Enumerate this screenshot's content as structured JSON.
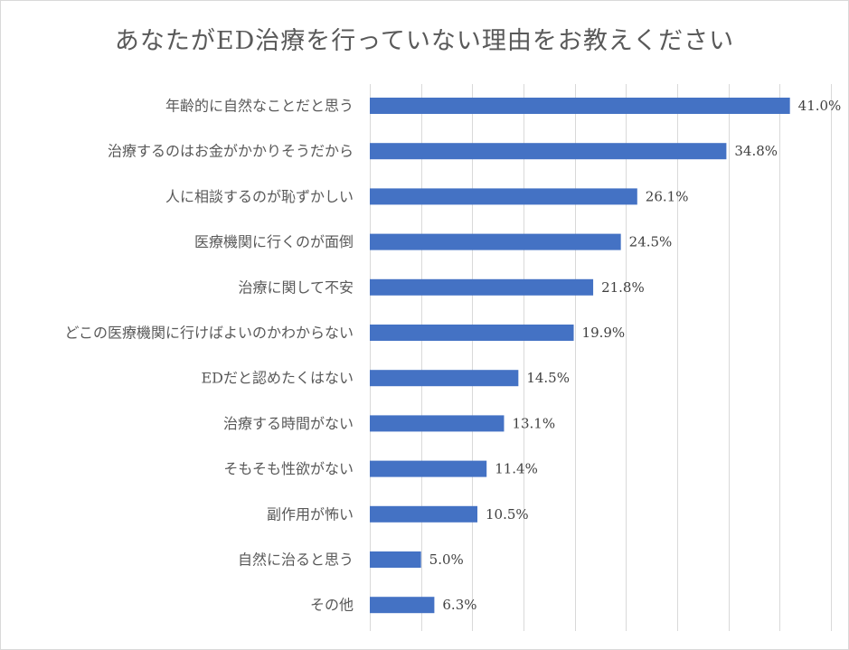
{
  "chart_data": {
    "type": "bar",
    "orientation": "horizontal",
    "title": "あなたがED治療を行っていない理由をお教えください",
    "categories": [
      "年齢的に自然なことだと思う",
      "治療するのはお金がかかりそうだから",
      "人に相談するのが恥ずかしい",
      "医療機関に行くのが面倒",
      "治療に関して不安",
      "どこの医療機関に行けばよいのかわからない",
      "EDだと認めたくはない",
      "治療する時間がない",
      "そもそも性欲がない",
      "副作用が怖い",
      "自然に治ると思う",
      "その他"
    ],
    "values": [
      41.0,
      34.8,
      26.1,
      24.5,
      21.8,
      19.9,
      14.5,
      13.1,
      11.4,
      10.5,
      5.0,
      6.3
    ],
    "value_labels": [
      "41.0%",
      "34.8%",
      "26.1%",
      "24.5%",
      "21.8%",
      "19.9%",
      "14.5%",
      "13.1%",
      "11.4%",
      "10.5%",
      "5.0%",
      "6.3%"
    ],
    "xlim": [
      0,
      45
    ],
    "x_gridline_step": 5,
    "grid": true,
    "legend": "none",
    "bar_color": "#4472C4",
    "grid_color": "#d9d9d9"
  }
}
